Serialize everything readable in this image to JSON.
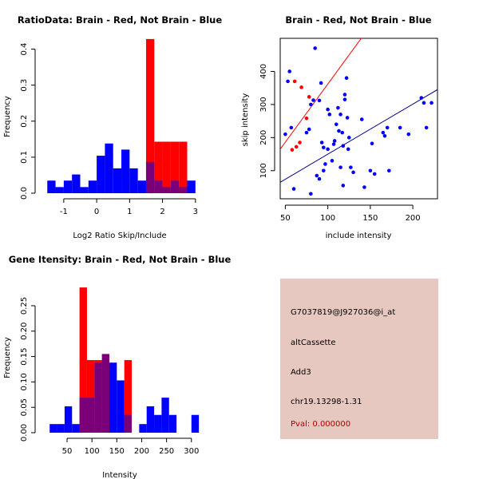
{
  "colors": {
    "brain": "#ff0000",
    "not_brain": "#0000ff",
    "overlap": "#7a007a",
    "brain_line": "#ff0000",
    "not_brain_line": "#00008b",
    "panel_bg": "#e6c8c0",
    "pval_text": "#b00000"
  },
  "info": {
    "probe_id": "G7037819@J927036@i_at",
    "event_type": "altCassette",
    "gene": "Add3",
    "location": "chr19.13298-1.31",
    "pval": "Pval: 0.000000"
  },
  "chart_data": [
    {
      "id": "ratio",
      "type": "bar",
      "title": "RatioData: Brain - Red, Not Brain - Blue",
      "xlabel": "Log2 Ratio Skip/Include",
      "ylabel": "Frequency",
      "xlim": [
        -1.7,
        3.15
      ],
      "ylim": [
        0,
        0.43
      ],
      "x_ticks": [
        "-1",
        "0",
        "1",
        "2",
        "3"
      ],
      "x_tick_values": [
        -1,
        0,
        1,
        2,
        3
      ],
      "y_ticks": [
        "0.0",
        "0.1",
        "0.2",
        "0.3",
        "0.4"
      ],
      "y_tick_values": [
        0,
        0.1,
        0.2,
        0.3,
        0.4
      ],
      "bin_width": 0.25,
      "series": [
        {
          "name": "Not Brain",
          "bin_starts": [
            -1.5,
            -1.25,
            -1.0,
            -0.75,
            -0.5,
            -0.25,
            0.0,
            0.25,
            0.5,
            0.75,
            1.0,
            1.25,
            1.5,
            1.75,
            2.0,
            2.25,
            2.5,
            2.75
          ],
          "values": [
            0.035,
            0.017,
            0.035,
            0.052,
            0.017,
            0.035,
            0.104,
            0.138,
            0.069,
            0.121,
            0.069,
            0.035,
            0.087,
            0.035,
            0.017,
            0.035,
            0.017,
            0.035
          ]
        },
        {
          "name": "Brain",
          "bin_starts": [
            1.5,
            1.75,
            2.0,
            2.25,
            2.5
          ],
          "values": [
            0.428,
            0.143,
            0.143,
            0.143,
            0.143
          ]
        }
      ]
    },
    {
      "id": "scatter",
      "type": "scatter",
      "title": "Brain - Red, Not Brain - Blue",
      "xlabel": "include intensity",
      "ylabel": "skip intensity",
      "xlim": [
        44,
        229
      ],
      "ylim": [
        15,
        500
      ],
      "x_ticks": [
        "50",
        "100",
        "150",
        "200"
      ],
      "x_tick_values": [
        50,
        100,
        150,
        200
      ],
      "y_ticks": [
        "100",
        "200",
        "300",
        "400"
      ],
      "y_tick_values": [
        100,
        200,
        300,
        400
      ],
      "series": [
        {
          "name": "Brain",
          "points": [
            [
              61,
              370
            ],
            [
              67,
              185
            ],
            [
              69,
              352
            ],
            [
              75,
              258
            ],
            [
              78,
              323
            ],
            [
              63,
              172
            ],
            [
              58,
              163
            ]
          ],
          "fit_line": [
            [
              44,
              165
            ],
            [
              145,
              520
            ]
          ]
        },
        {
          "name": "Not Brain",
          "points": [
            [
              50,
              210
            ],
            [
              53,
              370
            ],
            [
              55,
              400
            ],
            [
              57,
              230
            ],
            [
              60,
              45
            ],
            [
              85,
              470
            ],
            [
              90,
              312
            ],
            [
              92,
              365
            ],
            [
              80,
              300
            ],
            [
              78,
              225
            ],
            [
              83,
              313
            ],
            [
              87,
              85
            ],
            [
              95,
              170
            ],
            [
              93,
              185
            ],
            [
              95,
              100
            ],
            [
              97,
              120
            ],
            [
              100,
              285
            ],
            [
              102,
              270
            ],
            [
              105,
              130
            ],
            [
              107,
              180
            ],
            [
              108,
              190
            ],
            [
              110,
              240
            ],
            [
              112,
              290
            ],
            [
              113,
              220
            ],
            [
              115,
              270
            ],
            [
              115,
              110
            ],
            [
              117,
              215
            ],
            [
              118,
              175
            ],
            [
              120,
              315
            ],
            [
              120,
              330
            ],
            [
              122,
              380
            ],
            [
              123,
              260
            ],
            [
              124,
              165
            ],
            [
              125,
              200
            ],
            [
              127,
              110
            ],
            [
              130,
              95
            ],
            [
              118,
              55
            ],
            [
              140,
              255
            ],
            [
              143,
              50
            ],
            [
              150,
              100
            ],
            [
              152,
              182
            ],
            [
              155,
              90
            ],
            [
              165,
              215
            ],
            [
              167,
              205
            ],
            [
              170,
              230
            ],
            [
              172,
              100
            ],
            [
              185,
              230
            ],
            [
              195,
              210
            ],
            [
              210,
              320
            ],
            [
              213,
              305
            ],
            [
              216,
              230
            ],
            [
              222,
              305
            ],
            [
              80,
              30
            ],
            [
              75,
              215
            ],
            [
              90,
              75
            ],
            [
              100,
              165
            ]
          ],
          "fit_line": [
            [
              44,
              65
            ],
            [
              229,
              345
            ]
          ]
        }
      ]
    },
    {
      "id": "intensity",
      "type": "bar",
      "title": "Gene Itensity: Brain - Red, Not Brain - Blue",
      "xlabel": "Intensity",
      "ylabel": "Frequency",
      "xlim": [
        -3,
        318
      ],
      "ylim": [
        0,
        0.305
      ],
      "x_ticks": [
        "50",
        "100",
        "150",
        "200",
        "250",
        "300"
      ],
      "x_tick_values": [
        50,
        100,
        150,
        200,
        250,
        300
      ],
      "y_ticks": [
        "0.00",
        "0.05",
        "0.10",
        "0.15",
        "0.20",
        "0.25"
      ],
      "y_tick_values": [
        0,
        0.05,
        0.1,
        0.15,
        0.2,
        0.25
      ],
      "bin_width": 15,
      "series": [
        {
          "name": "Not Brain",
          "bin_starts": [
            15,
            30,
            45,
            60,
            75,
            90,
            105,
            120,
            135,
            150,
            165,
            180,
            195,
            210,
            225,
            240,
            255,
            270,
            285,
            300
          ],
          "values": [
            0.017,
            0.017,
            0.052,
            0.017,
            0.069,
            0.069,
            0.138,
            0.155,
            0.138,
            0.103,
            0.035,
            0.0,
            0.017,
            0.052,
            0.035,
            0.069,
            0.035,
            0.0,
            0.0,
            0.035
          ]
        },
        {
          "name": "Brain",
          "bin_starts": [
            75,
            90,
            105,
            120,
            135,
            150,
            165
          ],
          "values": [
            0.286,
            0.143,
            0.143,
            0.143,
            0.0,
            0.0,
            0.143
          ]
        }
      ]
    }
  ]
}
